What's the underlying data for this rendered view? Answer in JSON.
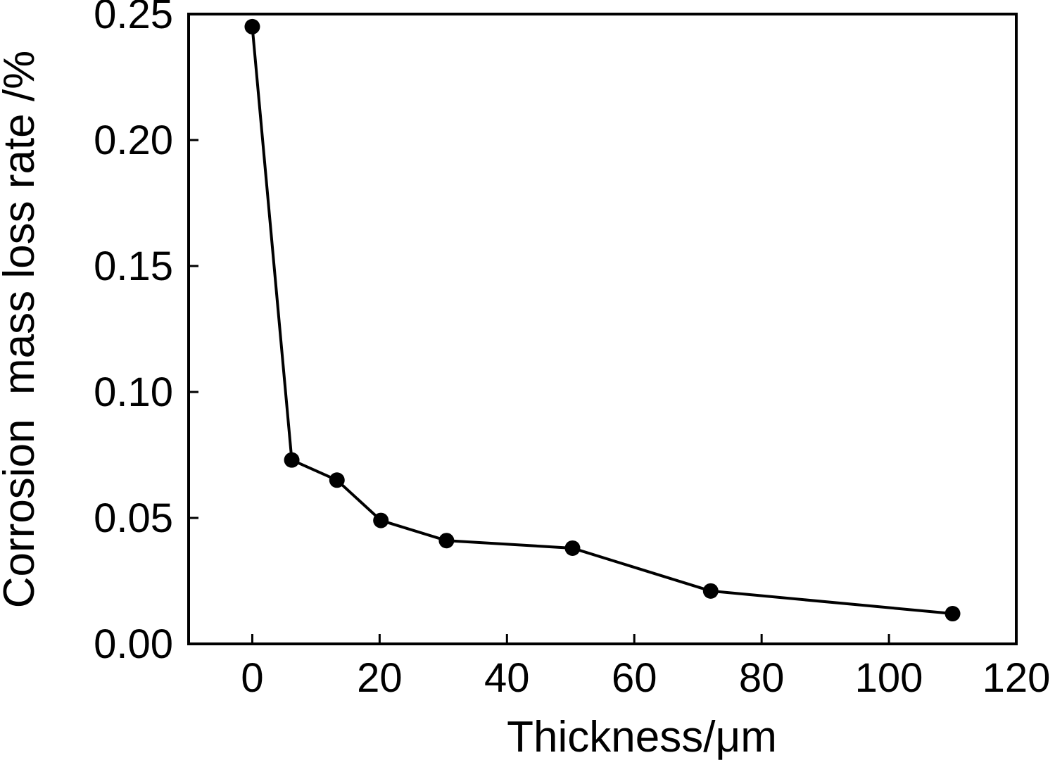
{
  "chart_data": {
    "type": "line",
    "title": "",
    "xlabel": "Thickness/μm",
    "ylabel": "Corrosion  mass loss rate /%",
    "xlim": [
      -10,
      120
    ],
    "ylim": [
      0,
      0.25
    ],
    "x_ticks": [
      "0",
      "20",
      "40",
      "60",
      "80",
      "100",
      "120"
    ],
    "y_ticks": [
      "0.00",
      "0.05",
      "0.10",
      "0.15",
      "0.20",
      "0.25"
    ],
    "grid": false,
    "legend": "none",
    "series": [
      {
        "x": [
          0,
          6.2,
          13.3,
          20.2,
          30.5,
          50.3,
          72.0,
          110.0
        ],
        "y": [
          0.245,
          0.073,
          0.065,
          0.049,
          0.041,
          0.038,
          0.021,
          0.012
        ],
        "color": "#000000",
        "marker": "circle"
      }
    ]
  }
}
